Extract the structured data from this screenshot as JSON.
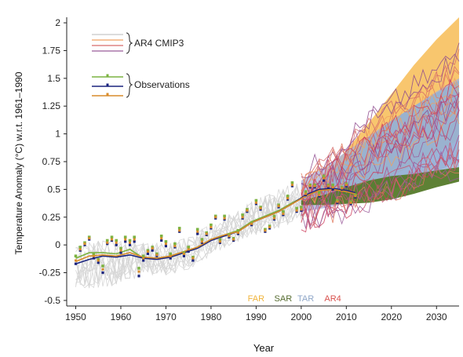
{
  "chart_data": {
    "type": "line",
    "title": "",
    "xlabel": "Year",
    "ylabel": "Temperature Anomaly (°C) w.r.t. 1961–1990",
    "xlim": [
      1948,
      2035
    ],
    "ylim": [
      -0.55,
      2.05
    ],
    "x_ticks": [
      1950,
      1960,
      1970,
      1980,
      1990,
      2000,
      2010,
      2020,
      2030
    ],
    "y_ticks": [
      -0.5,
      -0.25,
      0,
      0.25,
      0.5,
      0.75,
      1,
      1.25,
      1.5,
      1.75,
      2
    ],
    "y_tick_labels": [
      "-0.5",
      "-0.25",
      "0",
      "0.25",
      "0.5",
      "0.75",
      "1",
      "1.25",
      "1.5",
      "1.75",
      "2"
    ],
    "grid": false,
    "legend": {
      "position": "top-left",
      "groups": [
        {
          "label": "AR4 CMIP3",
          "lines": [
            "#c8c8c8",
            "#f0a060",
            "#d66a6a",
            "#9a5a9a"
          ]
        },
        {
          "label": "Observations",
          "lines": [
            "#7cb342",
            "#1a237e",
            "#d98c2b"
          ]
        }
      ]
    },
    "assessment_labels": [
      {
        "text": "FAR",
        "x": 1990,
        "color": "#f0b43c"
      },
      {
        "text": "SAR",
        "x": 1996,
        "color": "#556b2f"
      },
      {
        "text": "TAR",
        "x": 2001,
        "color": "#8fa7c8"
      },
      {
        "text": "AR4",
        "x": 2007,
        "color": "#d9534f"
      }
    ],
    "projection_bands": [
      {
        "name": "FAR",
        "color": "#f5b33e",
        "x": [
          2000,
          2005,
          2010,
          2015,
          2020,
          2025,
          2030,
          2035
        ],
        "lower": [
          0.35,
          0.39,
          0.44,
          0.52,
          0.62,
          0.72,
          0.83,
          0.95
        ],
        "upper": [
          0.42,
          0.62,
          0.85,
          1.1,
          1.36,
          1.62,
          1.85,
          2.05
        ]
      },
      {
        "name": "SAR",
        "color": "#557a2a",
        "x": [
          2000,
          2005,
          2010,
          2015,
          2020,
          2025,
          2030,
          2035
        ],
        "lower": [
          0.36,
          0.36,
          0.37,
          0.38,
          0.41,
          0.46,
          0.52,
          0.57
        ],
        "upper": [
          0.4,
          0.45,
          0.52,
          0.58,
          0.62,
          0.64,
          0.67,
          0.7
        ]
      },
      {
        "name": "TAR",
        "color": "#8fb0d6",
        "x": [
          2000,
          2005,
          2010,
          2015,
          2020,
          2025,
          2030,
          2035
        ],
        "lower": [
          0.38,
          0.39,
          0.41,
          0.45,
          0.5,
          0.56,
          0.63,
          0.7
        ],
        "upper": [
          0.42,
          0.58,
          0.78,
          0.96,
          1.12,
          1.25,
          1.37,
          1.48
        ]
      },
      {
        "name": "AR4",
        "color": "#a8b0d8",
        "x": [
          2000,
          2005,
          2010,
          2015,
          2020,
          2025,
          2030,
          2035
        ],
        "lower": [
          0.3,
          0.33,
          0.37,
          0.43,
          0.5,
          0.57,
          0.66,
          0.75
        ],
        "upper": [
          0.58,
          0.7,
          0.84,
          0.98,
          1.12,
          1.25,
          1.38,
          1.5
        ]
      }
    ],
    "cmip3_envelope": {
      "x": [
        1950,
        1955,
        1960,
        1965,
        1970,
        1975,
        1980,
        1985,
        1990,
        1995,
        2000
      ],
      "lower": [
        -0.42,
        -0.45,
        -0.4,
        -0.3,
        -0.3,
        -0.25,
        -0.12,
        -0.02,
        0.05,
        0.12,
        0.2
      ],
      "upper": [
        0.05,
        0.1,
        0.08,
        0.05,
        0.05,
        0.1,
        0.22,
        0.32,
        0.45,
        0.55,
        0.62
      ]
    },
    "cmip3_projection_range": {
      "x": [
        2000,
        2005,
        2010,
        2015,
        2020,
        2025,
        2030,
        2035
      ],
      "lower": [
        0.2,
        0.25,
        0.3,
        0.38,
        0.45,
        0.52,
        0.6,
        0.68
      ],
      "upper": [
        0.62,
        0.8,
        0.98,
        1.15,
        1.3,
        1.45,
        1.6,
        1.8
      ]
    },
    "series": [
      {
        "name": "Observations",
        "color": "#7cb342",
        "x": [
          1950,
          1953,
          1956,
          1959,
          1962,
          1965,
          1968,
          1971,
          1974,
          1977,
          1980,
          1983,
          1986,
          1989,
          1992,
          1995,
          1998,
          2001,
          2004,
          2007,
          2010,
          2012
        ],
        "values": [
          -0.12,
          -0.07,
          -0.07,
          -0.08,
          -0.04,
          -0.12,
          -0.12,
          -0.1,
          -0.06,
          -0.02,
          0.05,
          0.09,
          0.13,
          0.21,
          0.26,
          0.31,
          0.38,
          0.44,
          0.49,
          0.5,
          0.48,
          0.47
        ]
      },
      {
        "name": "Observations",
        "color": "#1a237e",
        "x": [
          1950,
          1953,
          1956,
          1959,
          1962,
          1965,
          1968,
          1971,
          1974,
          1977,
          1980,
          1983,
          1986,
          1989,
          1992,
          1995,
          1998,
          2001,
          2004,
          2007,
          2010,
          2012
        ],
        "values": [
          -0.17,
          -0.13,
          -0.1,
          -0.11,
          -0.09,
          -0.12,
          -0.13,
          -0.11,
          -0.07,
          -0.03,
          0.04,
          0.08,
          0.12,
          0.2,
          0.25,
          0.3,
          0.37,
          0.45,
          0.5,
          0.51,
          0.49,
          0.47
        ]
      },
      {
        "name": "Observations",
        "color": "#d98c2b",
        "x": [
          1950,
          1953,
          1956,
          1959,
          1962,
          1965,
          1968,
          1971,
          1974,
          1977,
          1980,
          1983,
          1986,
          1989,
          1992,
          1995,
          1998,
          2001,
          2004,
          2007,
          2010,
          2012
        ],
        "values": [
          -0.15,
          -0.1,
          -0.09,
          -0.1,
          -0.07,
          -0.11,
          -0.12,
          -0.1,
          -0.06,
          -0.02,
          0.05,
          0.09,
          0.12,
          0.2,
          0.25,
          0.3,
          0.37,
          0.44,
          0.49,
          0.5,
          0.48,
          0.46
        ]
      }
    ],
    "annual_markers": {
      "x": [
        1950,
        1951,
        1952,
        1953,
        1954,
        1955,
        1956,
        1957,
        1958,
        1959,
        1960,
        1961,
        1962,
        1963,
        1964,
        1965,
        1966,
        1967,
        1968,
        1969,
        1970,
        1971,
        1972,
        1973,
        1974,
        1975,
        1976,
        1977,
        1978,
        1979,
        1980,
        1981,
        1982,
        1983,
        1984,
        1985,
        1986,
        1987,
        1988,
        1989,
        1990,
        1991,
        1992,
        1993,
        1994,
        1995,
        1996,
        1997,
        1998,
        1999,
        2000,
        2001,
        2002,
        2003,
        2004,
        2005,
        2006,
        2007,
        2008,
        2009,
        2010,
        2011,
        2012
      ],
      "green": [
        -0.1,
        -0.02,
        0.02,
        0.07,
        -0.08,
        -0.13,
        -0.19,
        0.04,
        0.07,
        0.04,
        -0.03,
        0.07,
        0.04,
        0.07,
        -0.21,
        -0.1,
        -0.05,
        -0.02,
        -0.08,
        0.08,
        0.03,
        -0.08,
        0.01,
        0.15,
        -0.07,
        -0.02,
        -0.11,
        0.14,
        0.05,
        0.11,
        0.18,
        0.26,
        0.05,
        0.26,
        0.09,
        0.06,
        0.13,
        0.27,
        0.32,
        0.2,
        0.4,
        0.34,
        0.14,
        0.17,
        0.26,
        0.36,
        0.3,
        0.44,
        0.56,
        0.33,
        0.34,
        0.48,
        0.54,
        0.54,
        0.47,
        0.62,
        0.54,
        0.54,
        0.4,
        0.52,
        0.55,
        0.39,
        0.45
      ],
      "navy": [
        -0.17,
        -0.05,
        0.0,
        0.05,
        -0.12,
        -0.16,
        -0.25,
        0.01,
        0.04,
        0.0,
        -0.07,
        0.03,
        0.0,
        0.03,
        -0.28,
        -0.14,
        -0.08,
        -0.05,
        -0.1,
        0.04,
        -0.01,
        -0.12,
        -0.02,
        0.12,
        -0.1,
        -0.06,
        -0.14,
        0.1,
        0.02,
        0.09,
        0.15,
        0.24,
        0.02,
        0.23,
        0.07,
        0.04,
        0.1,
        0.24,
        0.3,
        0.18,
        0.37,
        0.32,
        0.12,
        0.15,
        0.23,
        0.34,
        0.27,
        0.41,
        0.53,
        0.3,
        0.31,
        0.45,
        0.52,
        0.52,
        0.44,
        0.58,
        0.52,
        0.5,
        0.38,
        0.5,
        0.53,
        0.37,
        0.43
      ],
      "orange": [
        -0.14,
        -0.04,
        0.01,
        0.06,
        -0.1,
        -0.14,
        -0.22,
        0.02,
        0.05,
        0.02,
        -0.05,
        0.05,
        0.02,
        0.05,
        -0.24,
        -0.12,
        -0.06,
        -0.03,
        -0.09,
        0.06,
        0.01,
        -0.1,
        -0.01,
        0.13,
        -0.08,
        -0.04,
        -0.12,
        0.12,
        0.03,
        0.1,
        0.16,
        0.25,
        0.03,
        0.24,
        0.08,
        0.05,
        0.11,
        0.25,
        0.31,
        0.19,
        0.38,
        0.33,
        0.13,
        0.16,
        0.24,
        0.35,
        0.28,
        0.42,
        0.54,
        0.31,
        0.32,
        0.46,
        0.53,
        0.53,
        0.45,
        0.6,
        0.53,
        0.52,
        0.39,
        0.51,
        0.54,
        0.38,
        0.44
      ]
    }
  }
}
